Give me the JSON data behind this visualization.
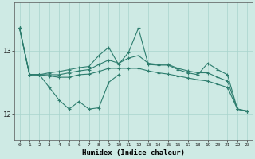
{
  "x": [
    0,
    1,
    2,
    3,
    4,
    5,
    6,
    7,
    8,
    9,
    10,
    11,
    12,
    13,
    14,
    15,
    16,
    17,
    18,
    19,
    20,
    21,
    22,
    23
  ],
  "color": "#2d7d6e",
  "bg_color": "#ceeae4",
  "grid_color": "#a8d4cc",
  "xlabel": "Humidex (Indice chaleur)",
  "ytick_vals": [
    12,
    13
  ],
  "ylim": [
    11.6,
    13.75
  ],
  "xlim": [
    -0.5,
    23.5
  ],
  "xticks": [
    0,
    1,
    2,
    3,
    4,
    5,
    6,
    7,
    8,
    9,
    10,
    11,
    12,
    13,
    14,
    15,
    16,
    17,
    18,
    19,
    20,
    21,
    22,
    23
  ],
  "y_line1": [
    13.35,
    12.62,
    12.62,
    12.62,
    12.62,
    12.65,
    12.68,
    12.7,
    12.78,
    12.85,
    12.8,
    12.88,
    12.92,
    12.8,
    12.78,
    12.78,
    12.72,
    12.68,
    12.65,
    12.65,
    12.58,
    12.52,
    12.08,
    12.05
  ],
  "y_line2": [
    13.35,
    12.62,
    12.62,
    12.65,
    12.67,
    12.7,
    12.73,
    12.75,
    12.92,
    13.05,
    12.78,
    12.97,
    13.35,
    12.78,
    12.77,
    12.77,
    12.7,
    12.65,
    12.62,
    12.8,
    12.7,
    12.62,
    12.08,
    12.05
  ],
  "y_line3": [
    13.35,
    12.62,
    12.62,
    12.6,
    12.58,
    12.58,
    12.62,
    12.63,
    12.67,
    12.72,
    12.72,
    12.72,
    12.72,
    12.68,
    12.65,
    12.63,
    12.6,
    12.57,
    12.54,
    12.52,
    12.47,
    12.42,
    12.08,
    12.04
  ],
  "y_line4_x": [
    0,
    1,
    2,
    3,
    4,
    5,
    6,
    7,
    8,
    9,
    10
  ],
  "y_line4": [
    13.35,
    12.62,
    12.62,
    12.42,
    12.22,
    12.08,
    12.2,
    12.08,
    12.1,
    12.5,
    12.62
  ]
}
